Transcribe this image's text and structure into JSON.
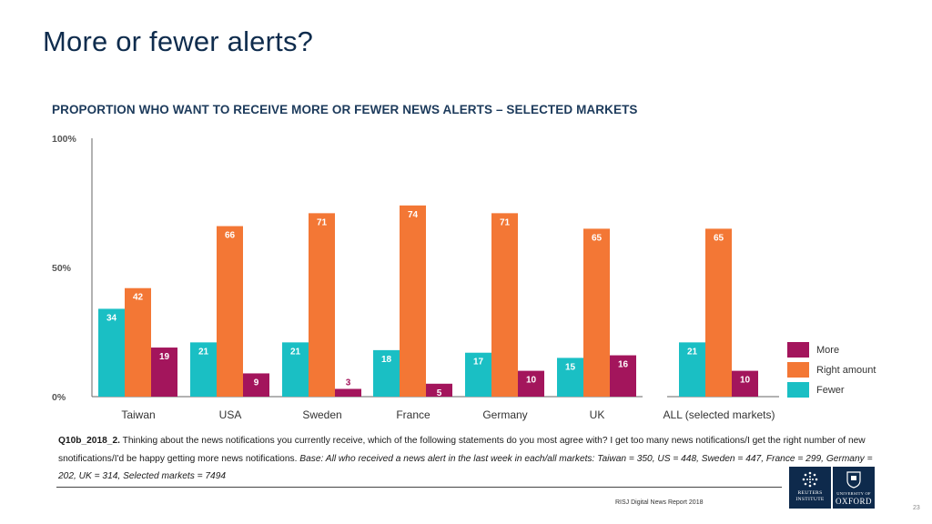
{
  "slide": {
    "title": "More or fewer alerts?",
    "source": "RISJ Digital News Report 2018",
    "page_number": "23"
  },
  "footnote": {
    "code": "Q10b_2018_2.",
    "question": " Thinking about the news notifications you currently receive, which of the following statements do you most agree with? I get too many news notifications/I get the right number of new snotifications/I'd be happy getting more news notifications. ",
    "base": "Base: All who received a news alert in the last week in each/all markets: Taiwan = 350, US = 448, Sweden = 447, France = 299, Germany = 202, UK = 314, Selected markets = 7494"
  },
  "logos": {
    "reuters": {
      "line1": "REUTERS",
      "line2": "INSTITUTE"
    },
    "oxford": {
      "line1": "UNIVERSITY OF",
      "line2": "OXFORD"
    }
  },
  "colors": {
    "fewer": "#1abfc4",
    "right_amount": "#f37735",
    "more": "#a3155c",
    "axis": "#666666",
    "label": "#333333"
  },
  "chart_data": {
    "type": "bar",
    "title": "PROPORTION WHO WANT TO RECEIVE MORE OR FEWER NEWS ALERTS – SELECTED MARKETS",
    "categories": [
      "Taiwan",
      "USA",
      "Sweden",
      "France",
      "Germany",
      "UK",
      "ALL (selected markets)"
    ],
    "series": [
      {
        "name": "Fewer",
        "values": [
          34,
          21,
          21,
          18,
          17,
          15,
          21
        ]
      },
      {
        "name": "Right amount",
        "values": [
          42,
          66,
          71,
          74,
          71,
          65,
          65
        ]
      },
      {
        "name": "More",
        "values": [
          19,
          9,
          3,
          5,
          10,
          16,
          10
        ]
      }
    ],
    "ylim": [
      0,
      100
    ],
    "yticks": [
      {
        "value": 0,
        "label": "0%"
      },
      {
        "value": 50,
        "label": "50%"
      },
      {
        "value": 100,
        "label": "100%"
      }
    ],
    "legend_order": [
      "More",
      "Right amount",
      "Fewer"
    ],
    "legend_position": "right",
    "grid": false
  }
}
